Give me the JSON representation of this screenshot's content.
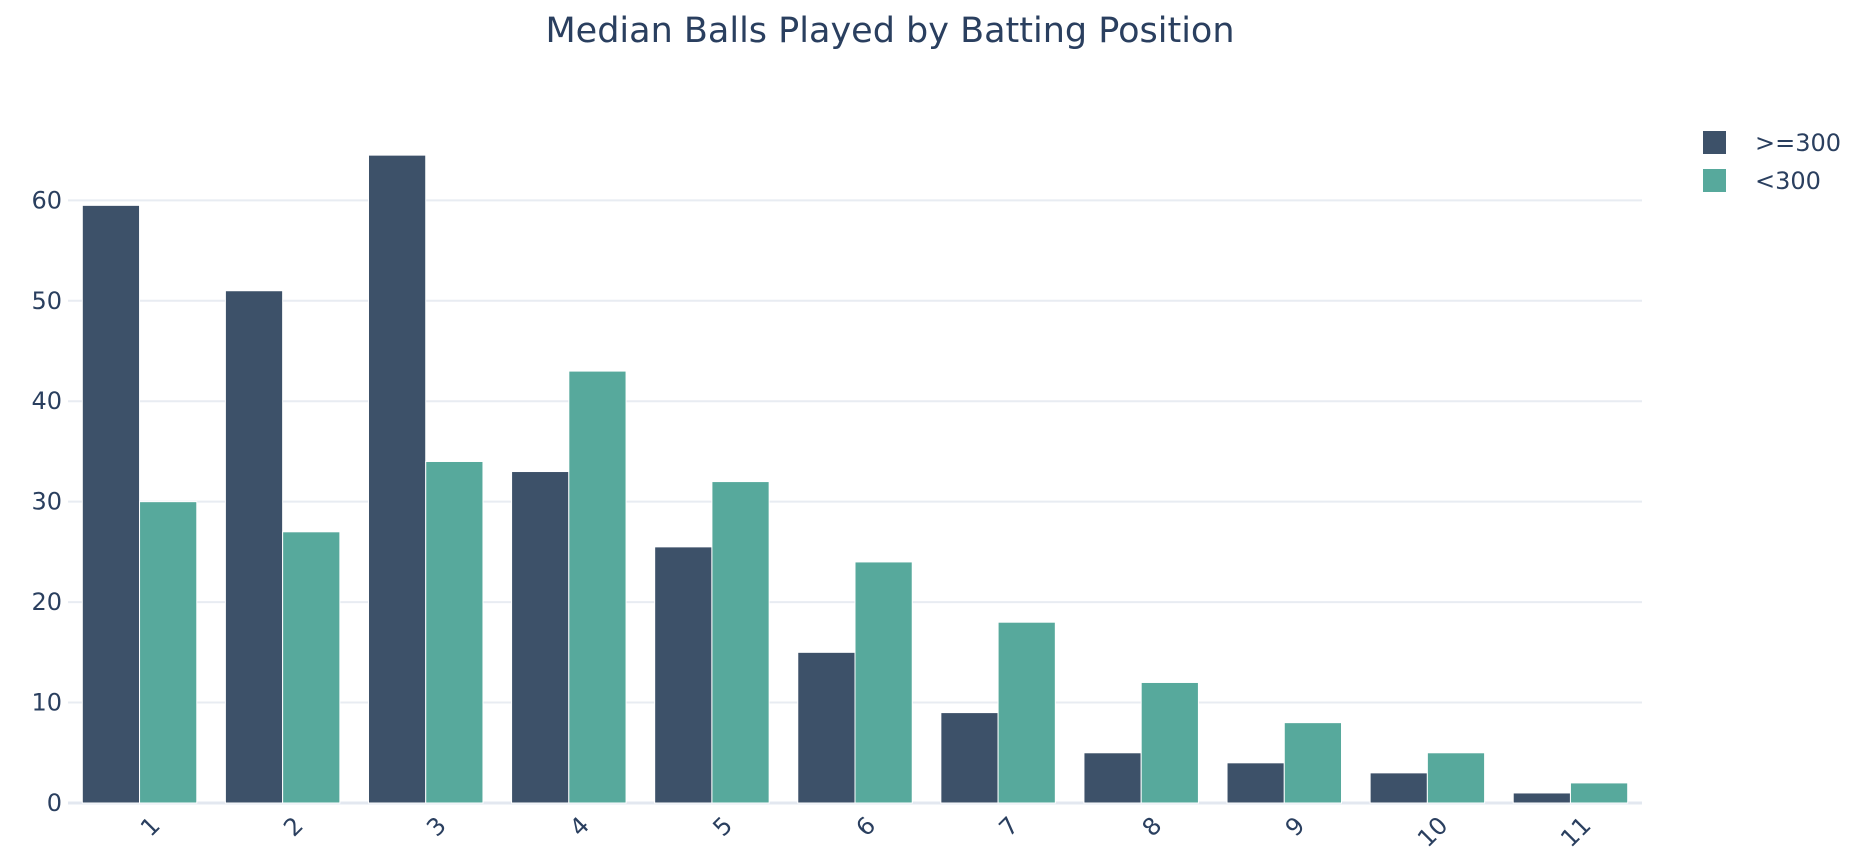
{
  "chart_data": {
    "type": "bar",
    "title": "Median Balls Played by Batting Position",
    "xlabel": "",
    "ylabel": "",
    "categories": [
      "1",
      "2",
      "3",
      "4",
      "5",
      "6",
      "7",
      "8",
      "9",
      "10",
      "11"
    ],
    "series": [
      {
        "name": ">=300",
        "color": "#3d5169",
        "values": [
          59.5,
          51,
          64.5,
          33,
          25.5,
          15,
          9,
          5,
          4,
          3,
          1
        ]
      },
      {
        "name": "<300",
        "color": "#57a99c",
        "values": [
          30,
          27,
          34,
          43,
          32,
          24,
          18,
          12,
          8,
          5,
          2
        ]
      }
    ],
    "ylim": [
      0,
      67.5
    ],
    "yticks": [
      0,
      10,
      20,
      30,
      40,
      50,
      60
    ],
    "grid": true,
    "legend_position": "top-right",
    "barmode": "group"
  }
}
